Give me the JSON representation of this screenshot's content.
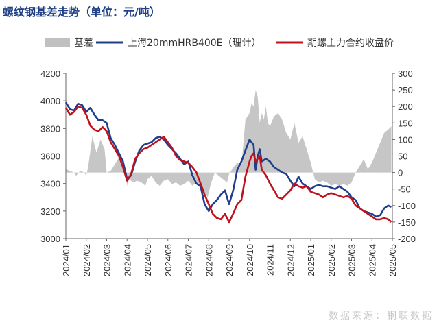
{
  "title": "螺纹钢基差走势（单位：元/吨）",
  "source": "数据来源：钢联数据",
  "colors": {
    "basis": "#c0c0c0",
    "spot": "#1f3f8c",
    "futures": "#c0121c"
  },
  "chart_data": {
    "type": "line",
    "title": "螺纹钢基差走势（单位：元/吨）",
    "legend_position": "top-center",
    "grid": false,
    "y_left": {
      "ylim": [
        3000,
        4200
      ],
      "ticks": [
        3000,
        3200,
        3400,
        3600,
        3800,
        4000,
        4200
      ]
    },
    "y_right": {
      "ylim": [
        -200,
        300
      ],
      "ticks": [
        -200,
        -150,
        -100,
        -50,
        0,
        50,
        100,
        150,
        200,
        250,
        300
      ]
    },
    "x_ticks": [
      "2024/01",
      "2024/02",
      "2024/03",
      "2024/04",
      "2024/05",
      "2024/06",
      "2024/07",
      "2024/08",
      "2024/09",
      "2024/10",
      "2024/11",
      "2024/12",
      "2025/01",
      "2025/02",
      "2025/03",
      "2025/04",
      "2025/05"
    ],
    "series": [
      {
        "name": "基差",
        "kind": "area",
        "axis": "right",
        "x": [
          0,
          0.2,
          0.4,
          0.5,
          0.7,
          0.9,
          1.0,
          1.1,
          1.3,
          1.5,
          1.7,
          1.9,
          2.0,
          2.2,
          2.4,
          2.6,
          2.8,
          2.9,
          3.0,
          3.1,
          3.3,
          3.5,
          3.7,
          3.9,
          4.0,
          4.2,
          4.4,
          4.6,
          4.8,
          5.0,
          5.2,
          5.4,
          5.6,
          5.8,
          6.0,
          6.2,
          6.4,
          6.6,
          6.8,
          6.95,
          7.1,
          7.3,
          7.5,
          7.7,
          7.9,
          8.0,
          8.2,
          8.4,
          8.6,
          8.8,
          9.0,
          9.1,
          9.2,
          9.3,
          9.4,
          9.5,
          9.6,
          9.7,
          9.8,
          9.9,
          10.0,
          10.2,
          10.4,
          10.6,
          10.8,
          11.0,
          11.2,
          11.4,
          11.6,
          11.8,
          12.0,
          12.2,
          12.4,
          12.6,
          12.8,
          13.0,
          13.2,
          13.4,
          13.6,
          13.8,
          14.0,
          14.2,
          14.4,
          14.6,
          14.8,
          15.0,
          15.2,
          15.4,
          15.6,
          15.8,
          15.95
        ],
        "y": [
          10,
          5,
          0,
          -10,
          5,
          0,
          -10,
          20,
          110,
          60,
          100,
          70,
          0,
          5,
          25,
          45,
          10,
          5,
          -40,
          -20,
          -30,
          -25,
          -30,
          -40,
          -20,
          -10,
          -30,
          -40,
          -25,
          -20,
          -35,
          -30,
          -40,
          -35,
          -25,
          -40,
          -30,
          -50,
          -60,
          -75,
          -35,
          0,
          -10,
          -20,
          -30,
          -5,
          15,
          30,
          20,
          160,
          180,
          210,
          200,
          250,
          230,
          150,
          180,
          160,
          200,
          150,
          140,
          170,
          180,
          160,
          120,
          100,
          150,
          90,
          110,
          70,
          30,
          -20,
          -30,
          -25,
          -30,
          -40,
          -35,
          -40,
          -35,
          -40,
          -30,
          0,
          20,
          40,
          10,
          30,
          60,
          90,
          120,
          130,
          140
        ]
      },
      {
        "name": "上海20mmHRB400E（理计）",
        "kind": "line",
        "axis": "left",
        "x": [
          0,
          0.2,
          0.4,
          0.6,
          0.8,
          1.0,
          1.2,
          1.4,
          1.6,
          1.8,
          2.0,
          2.2,
          2.4,
          2.6,
          2.8,
          3.0,
          3.2,
          3.4,
          3.6,
          3.8,
          4.0,
          4.2,
          4.4,
          4.6,
          4.8,
          5.0,
          5.2,
          5.4,
          5.6,
          5.8,
          6.0,
          6.2,
          6.4,
          6.6,
          6.8,
          7.0,
          7.2,
          7.4,
          7.6,
          7.8,
          8.0,
          8.2,
          8.4,
          8.6,
          8.8,
          9.0,
          9.1,
          9.2,
          9.3,
          9.4,
          9.5,
          9.6,
          9.8,
          10.0,
          10.2,
          10.4,
          10.6,
          10.8,
          11.0,
          11.2,
          11.4,
          11.6,
          11.8,
          12.0,
          12.2,
          12.4,
          12.6,
          12.8,
          13.0,
          13.2,
          13.4,
          13.6,
          13.8,
          14.0,
          14.2,
          14.4,
          14.6,
          14.8,
          15.0,
          15.2,
          15.4,
          15.6,
          15.8,
          15.95
        ],
        "y": [
          3990,
          3940,
          3930,
          3980,
          3970,
          3920,
          3950,
          3900,
          3860,
          3860,
          3840,
          3730,
          3680,
          3620,
          3560,
          3430,
          3460,
          3560,
          3640,
          3680,
          3690,
          3700,
          3730,
          3740,
          3720,
          3680,
          3650,
          3620,
          3580,
          3540,
          3560,
          3460,
          3400,
          3380,
          3250,
          3200,
          3250,
          3280,
          3320,
          3350,
          3250,
          3350,
          3500,
          3560,
          3640,
          3720,
          3700,
          3680,
          3500,
          3600,
          3650,
          3560,
          3580,
          3560,
          3520,
          3500,
          3480,
          3470,
          3420,
          3380,
          3450,
          3400,
          3380,
          3360,
          3380,
          3390,
          3380,
          3380,
          3370,
          3360,
          3380,
          3360,
          3340,
          3300,
          3280,
          3220,
          3200,
          3190,
          3180,
          3160,
          3170,
          3220,
          3240,
          3230
        ]
      },
      {
        "name": "期螺主力合约收盘价",
        "kind": "line",
        "axis": "left",
        "x": [
          0,
          0.2,
          0.4,
          0.6,
          0.8,
          1.0,
          1.2,
          1.4,
          1.6,
          1.8,
          2.0,
          2.2,
          2.4,
          2.6,
          2.8,
          3.0,
          3.2,
          3.4,
          3.6,
          3.8,
          4.0,
          4.2,
          4.4,
          4.6,
          4.8,
          5.0,
          5.2,
          5.4,
          5.6,
          5.8,
          6.0,
          6.2,
          6.4,
          6.6,
          6.8,
          7.0,
          7.2,
          7.4,
          7.6,
          7.8,
          8.0,
          8.2,
          8.4,
          8.6,
          8.8,
          9.0,
          9.1,
          9.2,
          9.3,
          9.4,
          9.5,
          9.6,
          9.8,
          10.0,
          10.2,
          10.4,
          10.6,
          10.8,
          11.0,
          11.2,
          11.4,
          11.6,
          11.8,
          12.0,
          12.2,
          12.4,
          12.6,
          12.8,
          13.0,
          13.2,
          13.4,
          13.6,
          13.8,
          14.0,
          14.2,
          14.4,
          14.6,
          14.8,
          15.0,
          15.2,
          15.4,
          15.6,
          15.8,
          15.95
        ],
        "y": [
          3950,
          3900,
          3920,
          3960,
          3950,
          3900,
          3820,
          3790,
          3780,
          3810,
          3780,
          3700,
          3650,
          3600,
          3520,
          3420,
          3470,
          3580,
          3620,
          3650,
          3660,
          3680,
          3700,
          3720,
          3740,
          3700,
          3660,
          3600,
          3570,
          3560,
          3550,
          3520,
          3480,
          3400,
          3320,
          3250,
          3180,
          3150,
          3140,
          3180,
          3120,
          3180,
          3250,
          3280,
          3450,
          3560,
          3600,
          3620,
          3560,
          3580,
          3600,
          3500,
          3460,
          3400,
          3350,
          3300,
          3290,
          3320,
          3350,
          3400,
          3380,
          3370,
          3380,
          3340,
          3330,
          3320,
          3300,
          3320,
          3330,
          3320,
          3310,
          3300,
          3310,
          3290,
          3240,
          3220,
          3200,
          3180,
          3160,
          3140,
          3140,
          3150,
          3140,
          3120
        ]
      }
    ]
  }
}
